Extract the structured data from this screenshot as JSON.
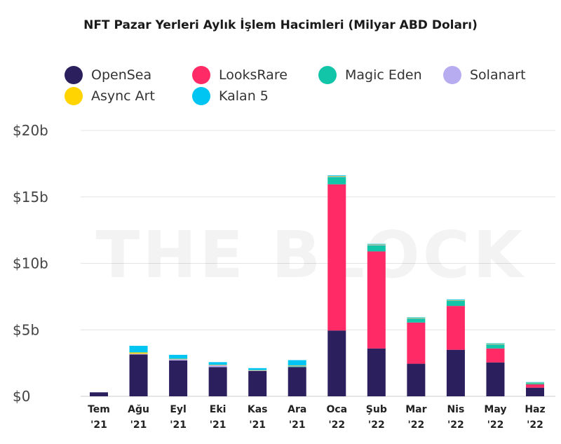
{
  "chart_data": {
    "type": "bar",
    "stacked": true,
    "title": "NFT Pazar Yerleri Aylık İşlem Hacimleri (Milyar ABD Doları)",
    "watermark": "THE BLOCK",
    "categories": [
      [
        "Tem",
        "'21"
      ],
      [
        "Ağu",
        "'21"
      ],
      [
        "Eyl",
        "'21"
      ],
      [
        "Eki",
        "'21"
      ],
      [
        "Kas",
        "'21"
      ],
      [
        "Ara",
        "'21"
      ],
      [
        "Oca",
        "'22"
      ],
      [
        "Şub",
        "'22"
      ],
      [
        "Mar",
        "'22"
      ],
      [
        "Nis",
        "'22"
      ],
      [
        "May",
        "'22"
      ],
      [
        "Haz",
        "'22"
      ]
    ],
    "series": [
      {
        "name": "OpenSea",
        "color": "#2b1f5e",
        "values": [
          0.3,
          3.15,
          2.7,
          2.2,
          1.9,
          2.2,
          4.95,
          3.6,
          2.45,
          3.5,
          2.55,
          0.65
        ]
      },
      {
        "name": "LooksRare",
        "color": "#ff2a66",
        "values": [
          0,
          0,
          0,
          0,
          0,
          0,
          11.0,
          7.3,
          3.1,
          3.3,
          1.05,
          0.25
        ]
      },
      {
        "name": "Magic Eden",
        "color": "#12c4a8",
        "values": [
          0,
          0,
          0,
          0,
          0,
          0.05,
          0.55,
          0.45,
          0.3,
          0.4,
          0.3,
          0.1
        ]
      },
      {
        "name": "Solanart",
        "color": "#b8acf0",
        "values": [
          0,
          0.05,
          0.1,
          0.15,
          0.05,
          0.05,
          0.05,
          0.05,
          0.02,
          0.02,
          0.02,
          0.01
        ]
      },
      {
        "name": "Async Art",
        "color": "#ffd400",
        "values": [
          0,
          0.1,
          0.02,
          0.02,
          0.02,
          0.02,
          0.02,
          0.02,
          0.02,
          0.02,
          0.02,
          0.01
        ]
      },
      {
        "name": "Kalan 5",
        "color": "#00c4f2",
        "values": [
          0,
          0.5,
          0.3,
          0.2,
          0.15,
          0.4,
          0.05,
          0.05,
          0.05,
          0.05,
          0.05,
          0.05
        ]
      }
    ],
    "yticks": [
      "$0",
      "$5b",
      "$10b",
      "$15b",
      "$20b"
    ],
    "ylim": [
      0,
      20
    ],
    "grid": true,
    "legend_position": "top"
  }
}
